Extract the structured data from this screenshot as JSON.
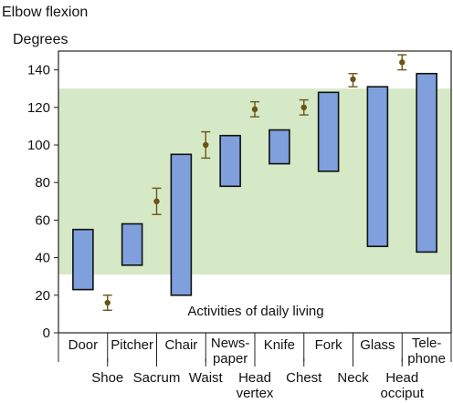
{
  "chart_data": {
    "type": "bar",
    "title": "Elbow flexion",
    "ylabel": "Degrees",
    "annotation": "Activities of daily living",
    "ylim": [
      0,
      150
    ],
    "yticks": [
      0,
      20,
      40,
      60,
      80,
      100,
      120,
      140
    ],
    "functional_band": [
      31,
      130
    ],
    "band_color": "#d6e9c6",
    "range_color": "#7f9fdd",
    "marker_color": "#6b5414",
    "range_bars": [
      {
        "label": "Door",
        "low": 23,
        "high": 55
      },
      {
        "label": "Pitcher",
        "low": 36,
        "high": 58
      },
      {
        "label": "Chair",
        "low": 20,
        "high": 95
      },
      {
        "label": "News-\npaper",
        "low": 78,
        "high": 105
      },
      {
        "label": "Knife",
        "low": 90,
        "high": 108
      },
      {
        "label": "Fork",
        "low": 86,
        "high": 128
      },
      {
        "label": "Glass",
        "low": 46,
        "high": 131
      },
      {
        "label": "Tele-\nphone",
        "low": 43,
        "high": 138
      }
    ],
    "point_ranges": [
      {
        "label": "Shoe",
        "mean": 16,
        "low": 12,
        "high": 20
      },
      {
        "label": "Sacrum",
        "mean": 70,
        "low": 63,
        "high": 77
      },
      {
        "label": "Waist",
        "mean": 100,
        "low": 93,
        "high": 107
      },
      {
        "label": "Head\nvertex",
        "mean": 119,
        "low": 115,
        "high": 123
      },
      {
        "label": "Chest",
        "mean": 120,
        "low": 116,
        "high": 124
      },
      {
        "label": "Neck",
        "mean": 135,
        "low": 131,
        "high": 138
      },
      {
        "label": "Head\nocciput",
        "mean": 144,
        "low": 140,
        "high": 148
      }
    ]
  }
}
